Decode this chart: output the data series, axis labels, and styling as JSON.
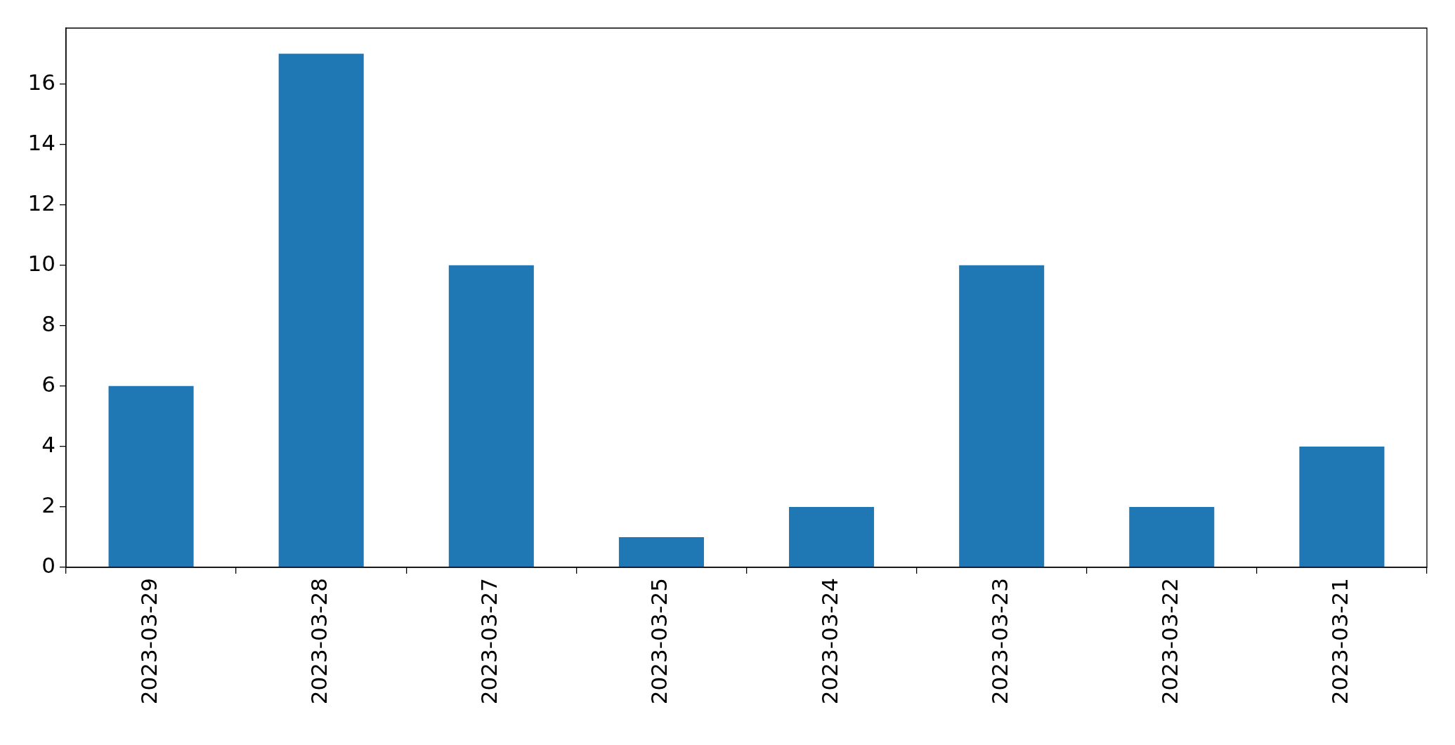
{
  "chart_data": {
    "type": "bar",
    "categories": [
      "2023-03-29",
      "2023-03-28",
      "2023-03-27",
      "2023-03-25",
      "2023-03-24",
      "2023-03-23",
      "2023-03-22",
      "2023-03-21"
    ],
    "values": [
      6,
      17,
      10,
      1,
      2,
      10,
      2,
      4
    ],
    "color": "#1f77b4",
    "ylim": [
      0,
      17.85
    ],
    "yticks": [
      0,
      2,
      4,
      6,
      8,
      10,
      12,
      14,
      16
    ],
    "grid": false,
    "legend": false
  }
}
